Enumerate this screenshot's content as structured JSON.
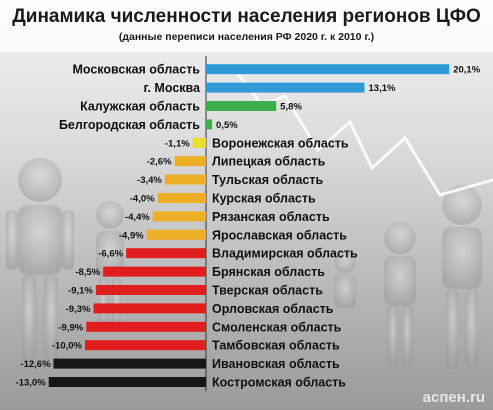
{
  "header": {
    "title": "Динамика численности населения регионов ЦФО",
    "subtitle": "(данные переписи населения РФ 2020 г. к 2010 г.)"
  },
  "watermark": "аспен.ru",
  "colors": {
    "growth_high": "#2f9ad6",
    "growth_mid": "#3cae4a",
    "decline_light": "#e9de2e",
    "decline_mid": "#ecaf25",
    "decline_strong": "#e11e1e",
    "decline_extreme": "#161616"
  },
  "chart_data": {
    "type": "bar",
    "orientation": "horizontal",
    "title": "Динамика численности населения регионов ЦФО",
    "subtitle": "(данные переписи населения РФ 2020 г. к 2010 г.)",
    "categories": [
      "Московская область",
      "г. Москва",
      "Калужская область",
      "Белгородская область",
      "Воронежская область",
      "Липецкая область",
      "Тульская область",
      "Курская область",
      "Рязанская область",
      "Ярославская область",
      "Владимирская область",
      "Брянская область",
      "Тверская область",
      "Орловская область",
      "Смоленская область",
      "Тамбовская область",
      "Ивановская область",
      "Костромская область"
    ],
    "values": [
      20.1,
      13.1,
      5.8,
      0.5,
      -1.1,
      -2.6,
      -3.4,
      -4.0,
      -4.4,
      -4.9,
      -6.6,
      -8.5,
      -9.1,
      -9.3,
      -9.9,
      -10.0,
      -12.6,
      -13.0
    ],
    "value_labels": [
      "20,1%",
      "13,1%",
      "5,8%",
      "0,5%",
      "-1,1%",
      "-2,6%",
      "-3,4%",
      "-4,0%",
      "-4,4%",
      "-4,9%",
      "-6,6%",
      "-8,5%",
      "-9,1%",
      "-9,3%",
      "-9,9%",
      "-10,0%",
      "-12,6%",
      "-13,0%"
    ],
    "bar_colors": [
      "growth_high",
      "growth_high",
      "growth_mid",
      "growth_mid",
      "decline_light",
      "decline_mid",
      "decline_mid",
      "decline_mid",
      "decline_mid",
      "decline_mid",
      "decline_strong",
      "decline_strong",
      "decline_strong",
      "decline_strong",
      "decline_strong",
      "decline_strong",
      "decline_extreme",
      "decline_extreme"
    ],
    "xlim": [
      -13.0,
      20.1
    ],
    "unit": "%",
    "grid": false,
    "legend": "none"
  }
}
